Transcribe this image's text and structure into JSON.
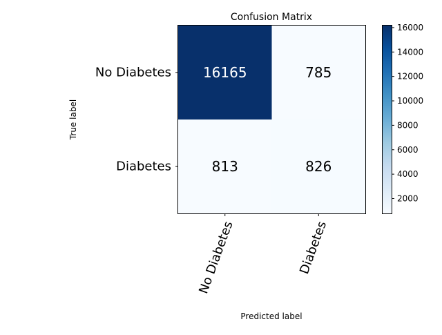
{
  "chart_data": {
    "type": "heatmap",
    "title": "Confusion Matrix",
    "xlabel": "Predicted label",
    "ylabel": "True label",
    "x_categories": [
      "No Diabetes",
      "Diabetes"
    ],
    "y_categories": [
      "No Diabetes",
      "Diabetes"
    ],
    "matrix": [
      [
        16165,
        785
      ],
      [
        813,
        826
      ]
    ],
    "colormap": "Blues",
    "color_range": [
      785,
      16165
    ],
    "colorbar_ticks": [
      2000,
      4000,
      6000,
      8000,
      10000,
      12000,
      14000,
      16000
    ],
    "colors": {
      "low": "#f7fbff",
      "high": "#08306b",
      "text_dark": "#000000",
      "text_light": "#ffffff"
    }
  }
}
